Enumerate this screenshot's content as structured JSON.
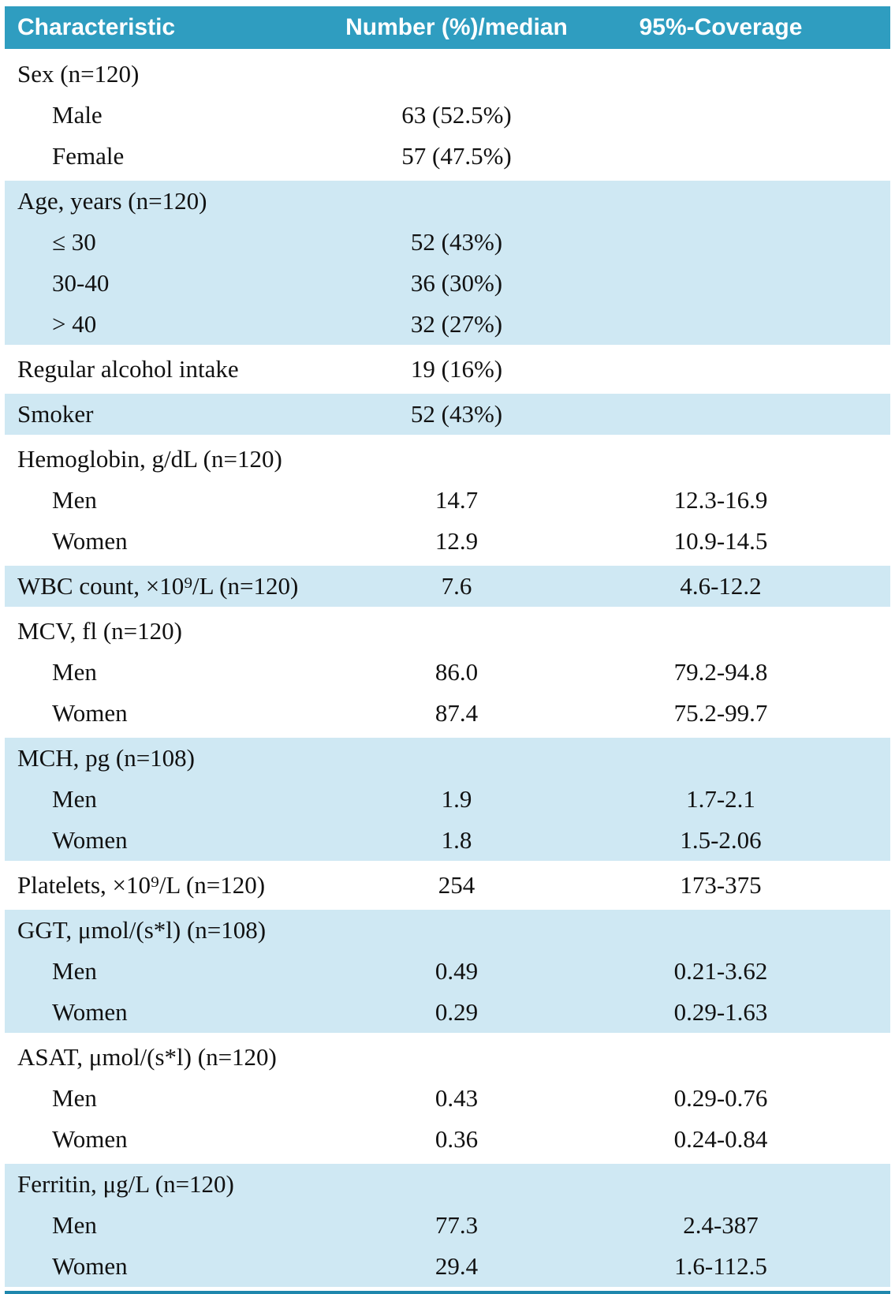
{
  "colors": {
    "header_bg": "#2f9dc0",
    "band_bg": "#cfe8f3",
    "bottom_rule": "#1f87ad"
  },
  "table": {
    "header": {
      "characteristic": "Characteristic",
      "number": "Number (%)/median",
      "coverage": "95%-Coverage"
    },
    "groups": [
      {
        "band": "white",
        "rows": [
          {
            "label": "Sex (n=120)",
            "indent": 0,
            "value": "",
            "coverage": ""
          },
          {
            "label": "Male",
            "indent": 1,
            "value": "63 (52.5%)",
            "coverage": ""
          },
          {
            "label": "Female",
            "indent": 1,
            "value": "57 (47.5%)",
            "coverage": ""
          }
        ]
      },
      {
        "band": "blue",
        "rows": [
          {
            "label": "Age, years (n=120)",
            "indent": 0,
            "value": "",
            "coverage": ""
          },
          {
            "label": "≤ 30",
            "indent": 1,
            "value": "52 (43%)",
            "coverage": ""
          },
          {
            "label": "30-40",
            "indent": 1,
            "value": "36 (30%)",
            "coverage": ""
          },
          {
            "label": "> 40",
            "indent": 1,
            "value": "32 (27%)",
            "coverage": ""
          }
        ]
      },
      {
        "band": "white",
        "rows": [
          {
            "label": "Regular alcohol intake",
            "indent": 0,
            "value": "19 (16%)",
            "coverage": ""
          }
        ]
      },
      {
        "band": "blue",
        "rows": [
          {
            "label": "Smoker",
            "indent": 0,
            "value": "52 (43%)",
            "coverage": ""
          }
        ]
      },
      {
        "band": "white",
        "rows": [
          {
            "label": "Hemoglobin, g/dL (n=120)",
            "indent": 0,
            "value": "",
            "coverage": ""
          },
          {
            "label": "Men",
            "indent": 1,
            "value": "14.7",
            "coverage": "12.3-16.9"
          },
          {
            "label": "Women",
            "indent": 1,
            "value": "12.9",
            "coverage": "10.9-14.5"
          }
        ]
      },
      {
        "band": "blue",
        "rows": [
          {
            "label": "WBC count, ×10⁹/L (n=120)",
            "indent": 0,
            "value": "7.6",
            "coverage": "4.6-12.2"
          }
        ]
      },
      {
        "band": "white",
        "rows": [
          {
            "label": "MCV, fl (n=120)",
            "indent": 0,
            "value": "",
            "coverage": ""
          },
          {
            "label": "Men",
            "indent": 1,
            "value": "86.0",
            "coverage": "79.2-94.8"
          },
          {
            "label": "Women",
            "indent": 1,
            "value": "87.4",
            "coverage": "75.2-99.7"
          }
        ]
      },
      {
        "band": "blue",
        "rows": [
          {
            "label": "MCH, pg (n=108)",
            "indent": 0,
            "value": "",
            "coverage": ""
          },
          {
            "label": "Men",
            "indent": 1,
            "value": "1.9",
            "coverage": "1.7-2.1"
          },
          {
            "label": "Women",
            "indent": 1,
            "value": "1.8",
            "coverage": "1.5-2.06"
          }
        ]
      },
      {
        "band": "white",
        "rows": [
          {
            "label": "Platelets, ×10⁹/L (n=120)",
            "indent": 0,
            "value": "254",
            "coverage": "173-375"
          }
        ]
      },
      {
        "band": "blue",
        "rows": [
          {
            "label": "GGT, μmol/(s*l) (n=108)",
            "indent": 0,
            "value": "",
            "coverage": ""
          },
          {
            "label": "Men",
            "indent": 1,
            "value": "0.49",
            "coverage": "0.21-3.62"
          },
          {
            "label": "Women",
            "indent": 1,
            "value": "0.29",
            "coverage": "0.29-1.63"
          }
        ]
      },
      {
        "band": "white",
        "rows": [
          {
            "label": "ASAT, μmol/(s*l) (n=120)",
            "indent": 0,
            "value": "",
            "coverage": ""
          },
          {
            "label": "Men",
            "indent": 1,
            "value": "0.43",
            "coverage": "0.29-0.76"
          },
          {
            "label": "Women",
            "indent": 1,
            "value": "0.36",
            "coverage": "0.24-0.84"
          }
        ]
      },
      {
        "band": "blue",
        "rows": [
          {
            "label": "Ferritin, μg/L (n=120)",
            "indent": 0,
            "value": "",
            "coverage": ""
          },
          {
            "label": "Men",
            "indent": 1,
            "value": "77.3",
            "coverage": "2.4-387"
          },
          {
            "label": "Women",
            "indent": 1,
            "value": "29.4",
            "coverage": "1.6-112.5"
          }
        ]
      }
    ]
  }
}
